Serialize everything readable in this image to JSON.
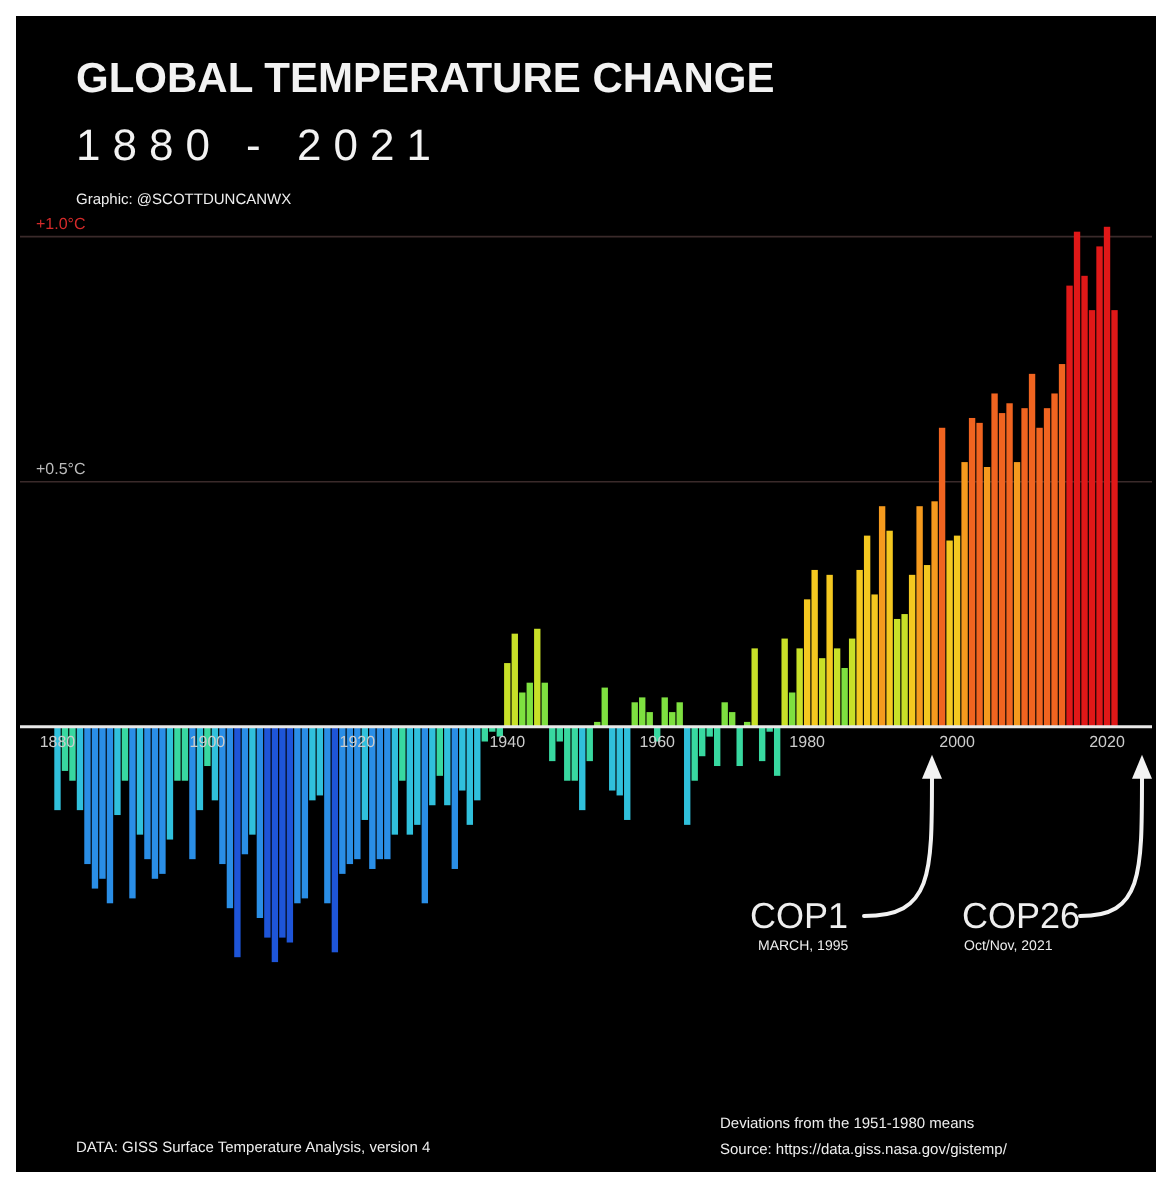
{
  "chart_data": {
    "type": "bar",
    "title": "GLOBAL TEMPERATURE CHANGE",
    "subtitle": "1880 - 2021",
    "annotations": [
      "Graphic: @SCOTTDUNCANWX",
      "DATA: GISS Surface Temperature Analysis, version 4",
      "Deviations from the 1951-1980 means",
      "Source: https://data.giss.nasa.gov/gistemp/",
      "COP1",
      "MARCH, 1995",
      "COP26",
      "Oct/Nov, 2021"
    ],
    "x": [
      1880,
      1881,
      1882,
      1883,
      1884,
      1885,
      1886,
      1887,
      1888,
      1889,
      1890,
      1891,
      1892,
      1893,
      1894,
      1895,
      1896,
      1897,
      1898,
      1899,
      1900,
      1901,
      1902,
      1903,
      1904,
      1905,
      1906,
      1907,
      1908,
      1909,
      1910,
      1911,
      1912,
      1913,
      1914,
      1915,
      1916,
      1917,
      1918,
      1919,
      1920,
      1921,
      1922,
      1923,
      1924,
      1925,
      1926,
      1927,
      1928,
      1929,
      1930,
      1931,
      1932,
      1933,
      1934,
      1935,
      1936,
      1937,
      1938,
      1939,
      1940,
      1941,
      1942,
      1943,
      1944,
      1945,
      1946,
      1947,
      1948,
      1949,
      1950,
      1951,
      1952,
      1953,
      1954,
      1955,
      1956,
      1957,
      1958,
      1959,
      1960,
      1961,
      1962,
      1963,
      1964,
      1965,
      1966,
      1967,
      1968,
      1969,
      1970,
      1971,
      1972,
      1973,
      1974,
      1975,
      1976,
      1977,
      1978,
      1979,
      1980,
      1981,
      1982,
      1983,
      1984,
      1985,
      1986,
      1987,
      1988,
      1989,
      1990,
      1991,
      1992,
      1993,
      1994,
      1995,
      1996,
      1997,
      1998,
      1999,
      2000,
      2001,
      2002,
      2003,
      2004,
      2005,
      2006,
      2007,
      2008,
      2009,
      2010,
      2011,
      2012,
      2013,
      2014,
      2015,
      2016,
      2017,
      2018,
      2019,
      2020,
      2021
    ],
    "values": [
      -0.17,
      -0.09,
      -0.11,
      -0.17,
      -0.28,
      -0.33,
      -0.31,
      -0.36,
      -0.18,
      -0.11,
      -0.35,
      -0.22,
      -0.27,
      -0.31,
      -0.3,
      -0.23,
      -0.11,
      -0.11,
      -0.27,
      -0.17,
      -0.08,
      -0.15,
      -0.28,
      -0.37,
      -0.47,
      -0.26,
      -0.22,
      -0.39,
      -0.43,
      -0.48,
      -0.43,
      -0.44,
      -0.36,
      -0.35,
      -0.15,
      -0.14,
      -0.36,
      -0.46,
      -0.3,
      -0.28,
      -0.27,
      -0.19,
      -0.29,
      -0.27,
      -0.27,
      -0.22,
      -0.11,
      -0.22,
      -0.2,
      -0.36,
      -0.16,
      -0.1,
      -0.16,
      -0.29,
      -0.13,
      -0.2,
      -0.15,
      -0.03,
      -0.01,
      -0.02,
      0.13,
      0.19,
      0.07,
      0.09,
      0.2,
      0.09,
      -0.07,
      -0.03,
      -0.11,
      -0.11,
      -0.17,
      -0.07,
      0.01,
      0.08,
      -0.13,
      -0.14,
      -0.19,
      0.05,
      0.06,
      0.03,
      -0.03,
      0.06,
      0.03,
      0.05,
      -0.2,
      -0.11,
      -0.06,
      -0.02,
      -0.08,
      0.05,
      0.03,
      -0.08,
      0.01,
      0.16,
      -0.07,
      -0.01,
      -0.1,
      0.18,
      0.07,
      0.16,
      0.26,
      0.32,
      0.14,
      0.31,
      0.16,
      0.12,
      0.18,
      0.32,
      0.39,
      0.27,
      0.45,
      0.4,
      0.22,
      0.23,
      0.31,
      0.45,
      0.33,
      0.46,
      0.61,
      0.38,
      0.39,
      0.54,
      0.63,
      0.62,
      0.53,
      0.68,
      0.64,
      0.66,
      0.54,
      0.65,
      0.72,
      0.61,
      0.65,
      0.68,
      0.74,
      0.9,
      1.01,
      0.92,
      0.85,
      0.98,
      1.02,
      0.85
    ],
    "colors": [
      "#30c0dc",
      "#38d8a0",
      "#38d8a0",
      "#30c0dc",
      "#2a8ee6",
      "#2a8ee6",
      "#2a8ee6",
      "#2a8ee6",
      "#30c0dc",
      "#38d8a0",
      "#2a8ee6",
      "#30c0dc",
      "#2a8ee6",
      "#2a8ee6",
      "#2a8ee6",
      "#30c0dc",
      "#38d8a0",
      "#38d8a0",
      "#2a8ee6",
      "#30c0dc",
      "#38d8a0",
      "#30c0dc",
      "#2a8ee6",
      "#2a8ee6",
      "#1e55d8",
      "#2a8ee6",
      "#30c0dc",
      "#2a8ee6",
      "#1e55d8",
      "#1e55d8",
      "#1e55d8",
      "#1e55d8",
      "#2a8ee6",
      "#2a8ee6",
      "#30c0dc",
      "#30c0dc",
      "#2a8ee6",
      "#1e55d8",
      "#2a8ee6",
      "#2a8ee6",
      "#2a8ee6",
      "#30c0dc",
      "#2a8ee6",
      "#2a8ee6",
      "#2a8ee6",
      "#30c0dc",
      "#38d8a0",
      "#30c0dc",
      "#30c0dc",
      "#2a8ee6",
      "#30c0dc",
      "#38d8a0",
      "#30c0dc",
      "#2a8ee6",
      "#30c0dc",
      "#30c0dc",
      "#30c0dc",
      "#38d8a0",
      "#38d8a0",
      "#38d8a0",
      "#c8e028",
      "#c8e028",
      "#7ee040",
      "#7ee040",
      "#c8e028",
      "#7ee040",
      "#38d8a0",
      "#38d8a0",
      "#38d8a0",
      "#38d8a0",
      "#30c0dc",
      "#38d8a0",
      "#7ee040",
      "#7ee040",
      "#30c0dc",
      "#30c0dc",
      "#30c0dc",
      "#7ee040",
      "#7ee040",
      "#7ee040",
      "#38d8a0",
      "#7ee040",
      "#7ee040",
      "#7ee040",
      "#30c0dc",
      "#38d8a0",
      "#38d8a0",
      "#38d8a0",
      "#38d8a0",
      "#7ee040",
      "#7ee040",
      "#38d8a0",
      "#7ee040",
      "#c8e028",
      "#38d8a0",
      "#38d8a0",
      "#38d8a0",
      "#c8e028",
      "#7ee040",
      "#c8e028",
      "#f4c820",
      "#f4c820",
      "#c8e028",
      "#f4c820",
      "#c8e028",
      "#7ee040",
      "#c8e028",
      "#f4c820",
      "#f4c820",
      "#f4c820",
      "#f59a1e",
      "#f4c820",
      "#c8e028",
      "#c8e028",
      "#f4c820",
      "#f59a1e",
      "#f4c820",
      "#f59a1e",
      "#f06420",
      "#f4c820",
      "#f4c820",
      "#f59a1e",
      "#f06420",
      "#f06420",
      "#f59a1e",
      "#f06420",
      "#f06420",
      "#f06420",
      "#f59a1e",
      "#f06420",
      "#f06420",
      "#f06420",
      "#f06420",
      "#f06420",
      "#f06420",
      "#e01818",
      "#e01818",
      "#e01818",
      "#e01818",
      "#e01818",
      "#e01818",
      "#e01818"
    ],
    "xlim": [
      1875,
      2026
    ],
    "xticks": [
      1880,
      1900,
      1920,
      1940,
      1960,
      1980,
      2000,
      2020
    ],
    "ylim": [
      -0.9,
      1.45
    ],
    "yticks": [
      {
        "value": 0.5,
        "label": "+0.5°C"
      },
      {
        "value": 1,
        "label": "+1.0°C"
      }
    ],
    "grid": "y"
  }
}
